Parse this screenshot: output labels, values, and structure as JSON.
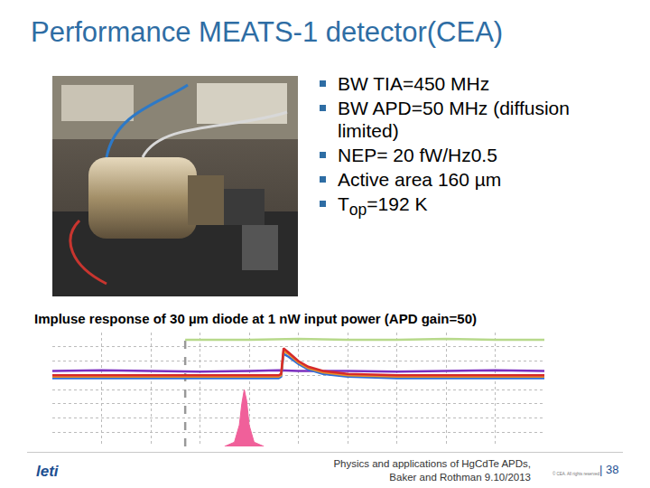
{
  "title": "Performance MEATS-1 detector(CEA)",
  "bullets": [
    {
      "text": "BW TIA=450 MHz"
    },
    {
      "text": "BW APD=50 MHz (diffusion limited)"
    },
    {
      "text": "NEP= 20 fW/Hz0.5"
    },
    {
      "text": "Active area 160 µm"
    },
    {
      "text": "T",
      "subscript": "op",
      "after": "=192 K"
    }
  ],
  "caption": "Impluse response of 30 µm diode at 1 nW input power (APD gain=50)",
  "chart_data": {
    "type": "line",
    "tick_labels": false,
    "grid": true,
    "xlim": [
      0,
      10
    ],
    "ylim": [
      0,
      8
    ],
    "xticks": [
      0,
      1,
      2,
      3,
      4,
      5,
      6,
      7,
      8,
      9,
      10
    ],
    "yticks": [
      0,
      1,
      2,
      3,
      4,
      5,
      6,
      7,
      8
    ],
    "series": [
      {
        "color": "#999999",
        "line_style": "dashed",
        "x": [
          2.7,
          2.7
        ],
        "values": [
          0,
          8
        ]
      },
      {
        "color": "#b7d98b",
        "x": [
          2.7,
          4,
          5,
          6,
          7,
          8,
          9,
          10
        ],
        "values": [
          7.5,
          7.5,
          7.55,
          7.5,
          7.5,
          7.55,
          7.5,
          7.5
        ]
      },
      {
        "color": "#7b2fbf",
        "x": [
          0,
          1,
          2,
          3,
          4,
          4.6,
          5,
          6,
          7,
          8,
          9,
          10
        ],
        "values": [
          5.3,
          5.35,
          5.3,
          5.25,
          5.3,
          5.35,
          5.3,
          5.3,
          5.25,
          5.3,
          5.35,
          5.3
        ]
      },
      {
        "color": "#2f6fd6",
        "x": [
          0,
          1,
          2,
          3,
          4,
          4.5,
          4.6,
          4.65,
          4.7,
          4.8,
          5.0,
          5.2,
          5.5,
          6,
          7,
          8,
          9,
          10
        ],
        "values": [
          4.8,
          4.8,
          4.8,
          4.8,
          4.8,
          4.8,
          4.8,
          4.9,
          6.5,
          6.3,
          5.8,
          5.4,
          5.1,
          4.9,
          4.8,
          4.8,
          4.8,
          4.8
        ]
      },
      {
        "color": "#e8902a",
        "x": [
          0,
          1,
          2,
          3,
          4,
          4.5,
          4.6,
          4.65,
          4.7,
          4.8,
          5.0,
          5.2,
          5.5,
          6,
          7,
          8,
          9,
          10
        ],
        "values": [
          4.9,
          4.9,
          4.9,
          4.9,
          4.9,
          4.9,
          4.9,
          5.0,
          6.7,
          6.5,
          5.9,
          5.5,
          5.2,
          5.0,
          4.9,
          4.9,
          4.9,
          4.9
        ]
      },
      {
        "color": "#d62a2a",
        "x": [
          0,
          1,
          2,
          3,
          4,
          4.5,
          4.6,
          4.65,
          4.7,
          4.8,
          5.0,
          5.2,
          5.5,
          6,
          7,
          8,
          9,
          10
        ],
        "values": [
          5.0,
          5.0,
          5.0,
          5.0,
          5.0,
          5.0,
          5.0,
          5.1,
          6.9,
          6.6,
          6.0,
          5.6,
          5.3,
          5.1,
          5.0,
          5.0,
          5.0,
          5.0
        ]
      },
      {
        "color": "#f0609a",
        "type": "area",
        "x": [
          3.5,
          3.7,
          3.8,
          3.85,
          3.9,
          3.95,
          4.0,
          4.1,
          4.3
        ],
        "values": [
          0,
          0.3,
          1.5,
          3,
          4,
          3.2,
          1.5,
          0.3,
          0
        ]
      }
    ]
  },
  "footer": {
    "lines": [
      "Physics and applications of HgCdTe APDs,",
      "Baker and Rothman 9.10/2013"
    ],
    "page": "| 38",
    "logo": "leti",
    "copyright": "© CEA. All rights reserved"
  }
}
